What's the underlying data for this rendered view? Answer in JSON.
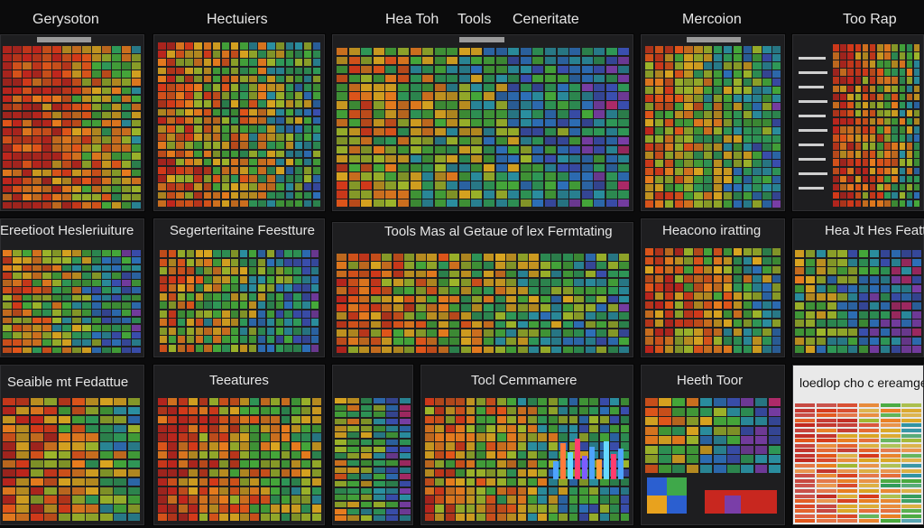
{
  "captions": {
    "top": [
      "Gerysoton",
      "Hectuiers",
      "Hea Toh",
      "Tools",
      "Ceneritate",
      "Mercoion",
      "Too Rap"
    ],
    "middle": [
      "Ereetioot Hesleriuiture",
      "Segerteritaine Feestture",
      "Tools Mas al Getaue of lex Fermtating",
      "Heacono iratting",
      "Hea Jt Hes Feattu"
    ],
    "bottom": [
      "Seaible mt Fedattue",
      "Teeatures",
      "Tocl Cemmamere",
      "Heeth Toor",
      "loedlop cho c ereamge"
    ]
  },
  "colors": {
    "background": "#0b0b0c",
    "panel": "#1e1e20",
    "heat_palette": [
      "#c0261d",
      "#d63a1a",
      "#e2561a",
      "#e87c1e",
      "#d9a420",
      "#9db52a",
      "#45a83a",
      "#2f9a58",
      "#2a8fa0",
      "#2d6fb8",
      "#3a4fb0",
      "#7a3ea8",
      "#b02a6a"
    ]
  }
}
